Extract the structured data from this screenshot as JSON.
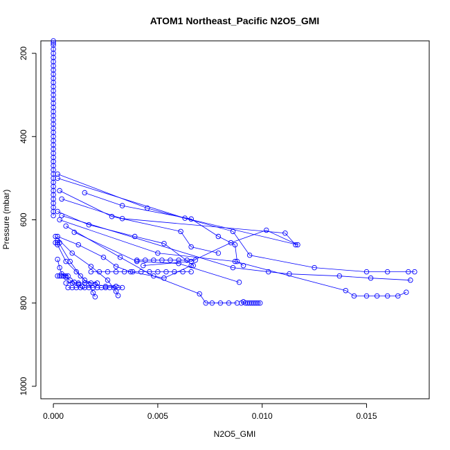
{
  "chart_data": {
    "type": "scatter",
    "title": "ATOM1 Northeast_Pacific N2O5_GMI",
    "xlabel": "N2O5_GMI",
    "ylabel": "Pressure (mbar)",
    "xlim": [
      -0.0006,
      0.018
    ],
    "ylim": [
      1030,
      170
    ],
    "y_reversed": true,
    "x_ticks": [
      0.0,
      0.005,
      0.01,
      0.015
    ],
    "x_tick_labels": [
      "0.000",
      "0.005",
      "0.010",
      "0.015"
    ],
    "y_ticks": [
      200,
      400,
      600,
      800,
      1000
    ],
    "y_tick_labels": [
      "200",
      "400",
      "600",
      "800",
      "1000"
    ],
    "grid": false,
    "legend": "none",
    "marker": "open-circle",
    "line_style": "connected",
    "color": "#0000ff",
    "series": [
      {
        "x": [
          0,
          0,
          0,
          0,
          0,
          0,
          0,
          0,
          0,
          0,
          0,
          0,
          0,
          0,
          0,
          0,
          0,
          0,
          0,
          0,
          0,
          0,
          0,
          0,
          0,
          0,
          0,
          0,
          0,
          0,
          0,
          0,
          0,
          0,
          0,
          0,
          0,
          0,
          0,
          0,
          0,
          0,
          0,
          0
        ],
        "y": [
          170,
          175,
          180,
          190,
          200,
          210,
          220,
          230,
          240,
          250,
          260,
          270,
          280,
          290,
          300,
          310,
          320,
          330,
          340,
          350,
          360,
          370,
          380,
          390,
          400,
          410,
          420,
          430,
          440,
          450,
          460,
          470,
          480,
          490,
          500,
          510,
          520,
          530,
          540,
          550,
          560,
          570,
          580,
          590
        ]
      },
      {
        "x": [
          0.0002,
          0.0045,
          0.0086,
          0.0094,
          0.0125,
          0.015,
          0.016,
          0.017,
          0.0173
        ],
        "y": [
          490,
          572,
          628,
          685,
          715,
          725,
          725,
          725,
          725
        ]
      },
      {
        "x": [
          0.0002,
          0.0063,
          0.0117,
          0.0102,
          0.0085,
          0.0066,
          0.0043
        ],
        "y": [
          500,
          596,
          660,
          625,
          655,
          700,
          710
        ]
      },
      {
        "x": [
          0.0015,
          0.0033,
          0.0066,
          0.0079,
          0.0087,
          0.0088,
          0.0091
        ],
        "y": [
          535,
          566,
          598,
          640,
          660,
          700,
          710
        ]
      },
      {
        "x": [
          0.0003,
          0.0028,
          0.0061,
          0.0066,
          0.0079
        ],
        "y": [
          530,
          592,
          628,
          665,
          680
        ]
      },
      {
        "x": [
          0.0004,
          0.0033,
          0.0111,
          0.0116
        ],
        "y": [
          550,
          597,
          632,
          660
        ]
      },
      {
        "x": [
          0.0002,
          0.0017,
          0.0039,
          0.0053,
          0.0067
        ],
        "y": [
          580,
          612,
          640,
          657,
          710
        ]
      },
      {
        "x": [
          0.0004,
          0.0086,
          0.0103,
          0.0113,
          0.0137,
          0.0152,
          0.0171
        ],
        "y": [
          590,
          715,
          725,
          730,
          735,
          740,
          745
        ]
      },
      {
        "x": [
          0.0003,
          0.005,
          0.0087,
          0.014,
          0.0144,
          0.015,
          0.0155,
          0.016,
          0.0165,
          0.0169
        ],
        "y": [
          600,
          680,
          700,
          770,
          783,
          783,
          783,
          783,
          783,
          774
        ]
      },
      {
        "x": [
          0.0006,
          0.0032,
          0.0048,
          0.007,
          0.0073,
          0.0076,
          0.008,
          0.0084,
          0.0088
        ],
        "y": [
          615,
          690,
          735,
          778,
          800,
          800,
          800,
          800,
          800
        ]
      },
      {
        "x": [
          0.009,
          0.0091,
          0.0092,
          0.0093,
          0.0094,
          0.0095,
          0.0096,
          0.0097,
          0.0098,
          0.0099
        ],
        "y": [
          800,
          797,
          800,
          800,
          800,
          800,
          800,
          800,
          800,
          800
        ]
      },
      {
        "x": [
          0.001,
          0.004,
          0.006,
          0.0089
        ],
        "y": [
          630,
          700,
          705,
          750
        ]
      },
      {
        "x": [
          0.0002,
          0.0012,
          0.0024,
          0.003,
          0.0037,
          0.0053,
          0.0066
        ],
        "y": [
          640,
          660,
          690,
          712,
          725,
          740,
          710
        ]
      },
      {
        "x": [
          0.0001,
          0.0009,
          0.0018,
          0.0026,
          0.003,
          0.0031
        ],
        "y": [
          640,
          680,
          712,
          745,
          772,
          782
        ]
      },
      {
        "x": [
          0.0002,
          0.0008,
          0.0013,
          0.0017,
          0.0019,
          0.002
        ],
        "y": [
          650,
          700,
          735,
          755,
          775,
          785
        ]
      },
      {
        "x": [
          0.0002,
          0.0006,
          0.0011,
          0.0015,
          0.002,
          0.0025,
          0.003
        ],
        "y": [
          660,
          700,
          725,
          745,
          755,
          760,
          760
        ]
      },
      {
        "x": [
          0.0002,
          0.0003,
          0.0004,
          0.0006,
          0.0008,
          0.001,
          0.0012,
          0.0014
        ],
        "y": [
          695,
          715,
          730,
          738,
          745,
          750,
          755,
          760
        ]
      },
      {
        "x": [
          0.0018,
          0.0022,
          0.0026,
          0.003,
          0.0034,
          0.0038,
          0.0042,
          0.0046,
          0.005,
          0.0054,
          0.0058,
          0.0062,
          0.0066
        ],
        "y": [
          725,
          725,
          725,
          725,
          725,
          725,
          725,
          725,
          725,
          725,
          725,
          725,
          725
        ]
      },
      {
        "x": [
          0.004,
          0.0044,
          0.0048,
          0.0052,
          0.0056,
          0.006,
          0.0064,
          0.0068
        ],
        "y": [
          697,
          697,
          697,
          697,
          697,
          697,
          697,
          697
        ]
      },
      {
        "x": [
          0.0006,
          0.0009,
          0.0012,
          0.0015,
          0.0018,
          0.0021
        ],
        "y": [
          752,
          752,
          752,
          752,
          752,
          752
        ]
      },
      {
        "x": [
          0.0007,
          0.0009,
          0.0011,
          0.0013,
          0.0015,
          0.0017,
          0.0019,
          0.0021,
          0.0023,
          0.0025,
          0.0027,
          0.0029,
          0.0031,
          0.0033
        ],
        "y": [
          763,
          763,
          763,
          763,
          763,
          763,
          763,
          763,
          763,
          763,
          763,
          763,
          763,
          763
        ]
      },
      {
        "x": [
          0.0002,
          0.0003,
          0.0004,
          0.0005,
          0.0006,
          0.0007
        ],
        "y": [
          735,
          735,
          735,
          735,
          735,
          735
        ]
      },
      {
        "x": [
          0.0001,
          0.0002,
          0.0003
        ],
        "y": [
          655,
          655,
          655
        ]
      }
    ]
  }
}
